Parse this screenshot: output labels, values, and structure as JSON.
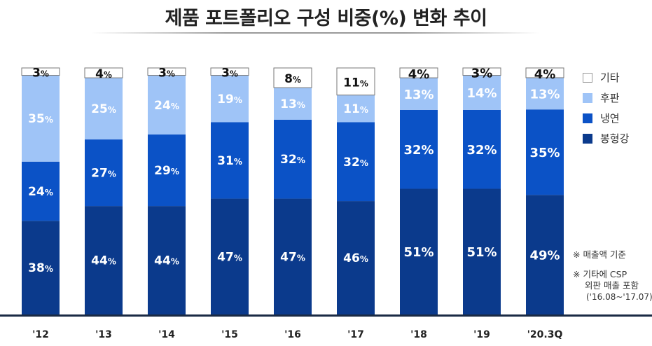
{
  "title": "제품 포트폴리오 구성 비중(%) 변화 추이",
  "colors": {
    "기타": "#ffffff",
    "후판": "#9fc4f7",
    "냉연": "#0b52c6",
    "봉형강": "#0b3a8c",
    "axis": "#1a2a44"
  },
  "legend": [
    "기타",
    "후판",
    "냉연",
    "봉형강"
  ],
  "notes": {
    "line1": "※ 매출액 기준",
    "line2": "※ 기타에 CSP",
    "line3": "외판 매출 포함",
    "line4": "('16.08~'17.07)"
  },
  "chart_data": {
    "type": "bar",
    "stacked": true,
    "categories": [
      "'12",
      "'13",
      "'14",
      "'15",
      "'16",
      "'17",
      "'18",
      "'19",
      "'20.3Q"
    ],
    "series": [
      {
        "name": "봉형강",
        "values": [
          38,
          44,
          44,
          47,
          47,
          46,
          51,
          51,
          49
        ]
      },
      {
        "name": "냉연",
        "values": [
          24,
          27,
          29,
          31,
          32,
          32,
          32,
          32,
          35
        ]
      },
      {
        "name": "후판",
        "values": [
          35,
          25,
          24,
          19,
          13,
          11,
          13,
          14,
          13
        ]
      },
      {
        "name": "기타",
        "values": [
          3,
          4,
          3,
          3,
          8,
          11,
          4,
          3,
          4
        ]
      }
    ],
    "unit": "%",
    "ylim": [
      0,
      100
    ],
    "legend_position": "right"
  }
}
